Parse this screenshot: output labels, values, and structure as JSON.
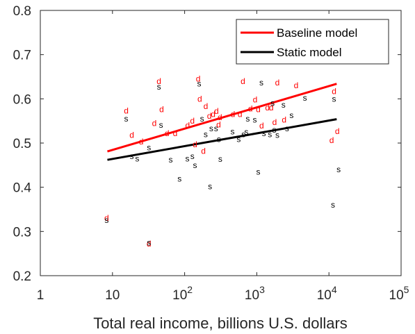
{
  "chart_data": {
    "type": "scatter",
    "xscale": "log",
    "xlim": [
      1,
      100000
    ],
    "ylim": [
      0.2,
      0.8
    ],
    "xlabel": "Total real income, billions U.S. dollars",
    "ylabel": "",
    "title": "",
    "grid": false,
    "legend_position": "top-right",
    "x_ticks": [
      {
        "v": 1,
        "base": "1",
        "exp": ""
      },
      {
        "v": 10,
        "base": "10",
        "exp": ""
      },
      {
        "v": 100,
        "base": "10",
        "exp": "2"
      },
      {
        "v": 1000,
        "base": "10",
        "exp": "3"
      },
      {
        "v": 10000,
        "base": "10",
        "exp": "4"
      },
      {
        "v": 100000,
        "base": "10",
        "exp": "5"
      }
    ],
    "y_ticks": [
      {
        "v": 0.2,
        "label": "0.2"
      },
      {
        "v": 0.3,
        "label": "0.3"
      },
      {
        "v": 0.4,
        "label": "0.4"
      },
      {
        "v": 0.5,
        "label": "0.5"
      },
      {
        "v": 0.6,
        "label": "0.6"
      },
      {
        "v": 0.7,
        "label": "0.7"
      },
      {
        "v": 0.8,
        "label": "0.8"
      }
    ],
    "series": [
      {
        "name": "Baseline model",
        "marker": "d",
        "color": "#ff0000",
        "points": [
          [
            8.3,
            0.33
          ],
          [
            32,
            0.272
          ],
          [
            15.5,
            0.573
          ],
          [
            18.5,
            0.518
          ],
          [
            25,
            0.503
          ],
          [
            38,
            0.545
          ],
          [
            44,
            0.64
          ],
          [
            48,
            0.576
          ],
          [
            57,
            0.522
          ],
          [
            74,
            0.522
          ],
          [
            110,
            0.54
          ],
          [
            128,
            0.55
          ],
          [
            139,
            0.497
          ],
          [
            154,
            0.645
          ],
          [
            162,
            0.6
          ],
          [
            182,
            0.482
          ],
          [
            196,
            0.583
          ],
          [
            220,
            0.561
          ],
          [
            248,
            0.565
          ],
          [
            276,
            0.572
          ],
          [
            296,
            0.542
          ],
          [
            308,
            0.558
          ],
          [
            466,
            0.565
          ],
          [
            585,
            0.565
          ],
          [
            643,
            0.64
          ],
          [
            815,
            0.578
          ],
          [
            947,
            0.598
          ],
          [
            1047,
            0.576
          ],
          [
            1168,
            0.539
          ],
          [
            1405,
            0.58
          ],
          [
            1586,
            0.58
          ],
          [
            1764,
            0.547
          ],
          [
            1925,
            0.637
          ],
          [
            2389,
            0.553
          ],
          [
            3510,
            0.63
          ],
          [
            10900,
            0.506
          ],
          [
            11780,
            0.617
          ],
          [
            13040,
            0.527
          ]
        ]
      },
      {
        "name": "Static model",
        "marker": "s",
        "color": "#000000",
        "points": [
          [
            8.3,
            0.326
          ],
          [
            32,
            0.275
          ],
          [
            15.5,
            0.555
          ],
          [
            18.5,
            0.47
          ],
          [
            22,
            0.465
          ],
          [
            32,
            0.49
          ],
          [
            44,
            0.627
          ],
          [
            47,
            0.541
          ],
          [
            64,
            0.462
          ],
          [
            85,
            0.419
          ],
          [
            109,
            0.465
          ],
          [
            128,
            0.47
          ],
          [
            139,
            0.45
          ],
          [
            159,
            0.634
          ],
          [
            174,
            0.555
          ],
          [
            196,
            0.52
          ],
          [
            225,
            0.402
          ],
          [
            234,
            0.533
          ],
          [
            272,
            0.533
          ],
          [
            298,
            0.509
          ],
          [
            312,
            0.464
          ],
          [
            461,
            0.526
          ],
          [
            561,
            0.509
          ],
          [
            654,
            0.52
          ],
          [
            716,
            0.525
          ],
          [
            749,
            0.555
          ],
          [
            938,
            0.553
          ],
          [
            1047,
            0.435
          ],
          [
            1158,
            0.637
          ],
          [
            1256,
            0.522
          ],
          [
            1520,
            0.52
          ],
          [
            1656,
            0.59
          ],
          [
            1744,
            0.53
          ],
          [
            1926,
            0.518
          ],
          [
            2339,
            0.586
          ],
          [
            2626,
            0.533
          ],
          [
            3030,
            0.563
          ],
          [
            4640,
            0.602
          ],
          [
            11360,
            0.36
          ],
          [
            11760,
            0.6
          ],
          [
            13620,
            0.44
          ]
        ]
      }
    ],
    "fit_lines": [
      {
        "name": "Baseline model",
        "color": "#ff0000",
        "x": [
          8.5,
          12800
        ],
        "y": [
          0.481,
          0.634
        ]
      },
      {
        "name": "Static model",
        "color": "#000000",
        "x": [
          8.5,
          12800
        ],
        "y": [
          0.462,
          0.554
        ]
      }
    ]
  }
}
